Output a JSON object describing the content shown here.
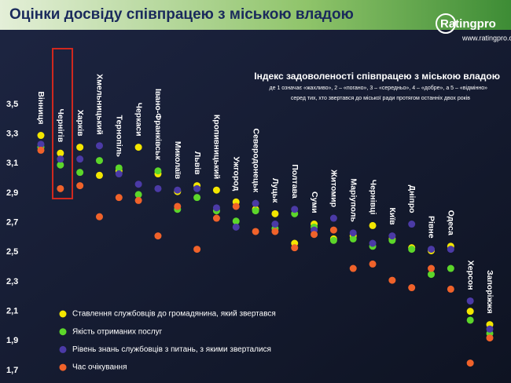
{
  "chart_data": {
    "type": "dotplot",
    "title": "Оцінки досвіду співпрацею з міською владою",
    "logo": "Ratingpro",
    "source": "www.ratingpro.org",
    "note_title": "Індекс задоволеності співпрацею з міською владою",
    "note_lines": [
      "де 1 означає «жахливо», 2 – «погано», 3 – «середньо», 4 – «добре», а 5 – «відмінно»",
      "серед тих, хто звертався до міської ради протягом останніх двох років"
    ],
    "categories": [
      "Вінниця",
      "Чернігів",
      "Харків",
      "Хмельницький",
      "Тернопіль",
      "Черкаси",
      "Івано-Франківськ",
      "Миколаїв",
      "Львів",
      "Кропивницький",
      "Ужгород",
      "Северодонецьк",
      "Луцьк",
      "Полтава",
      "Суми",
      "Житомир",
      "Маріуполь",
      "Чернівці",
      "Київ",
      "Дніпро",
      "Рівне",
      "Одеса",
      "Херсон",
      "Запоріжжя"
    ],
    "series": [
      {
        "name": "Ставлення службовців до громадянина, який звертався",
        "color": "#f3e600",
        "values": [
          3.29,
          3.17,
          3.21,
          3.02,
          3.05,
          3.21,
          3.03,
          2.91,
          2.95,
          2.92,
          2.84,
          2.79,
          2.76,
          2.56,
          2.69,
          2.59,
          2.61,
          2.68,
          2.59,
          2.53,
          2.51,
          2.54,
          2.1,
          2.01
        ]
      },
      {
        "name": "Якість отриманих послуг",
        "color": "#5cd62a",
        "values": [
          3.21,
          3.09,
          3.04,
          3.12,
          3.07,
          2.89,
          3.05,
          2.79,
          2.87,
          2.78,
          2.71,
          2.78,
          2.66,
          2.76,
          2.67,
          2.58,
          2.59,
          2.54,
          2.58,
          2.52,
          2.35,
          2.39,
          2.04,
          1.95
        ]
      },
      {
        "name": "Рівень знань службовців з питань, з якими зверталися",
        "color": "#4b3aa6",
        "values": [
          3.23,
          3.13,
          3.13,
          3.22,
          3.03,
          2.96,
          2.93,
          2.92,
          2.93,
          2.8,
          2.67,
          2.83,
          2.69,
          2.79,
          2.65,
          2.73,
          2.63,
          2.56,
          2.61,
          2.69,
          2.52,
          2.52,
          2.17,
          1.98
        ]
      },
      {
        "name": "Час очікування",
        "color": "#f0622a",
        "values": [
          3.19,
          2.93,
          2.95,
          2.74,
          2.87,
          2.85,
          2.61,
          2.81,
          2.52,
          2.73,
          2.81,
          2.64,
          2.64,
          2.53,
          2.62,
          2.65,
          2.39,
          2.42,
          2.31,
          2.26,
          2.39,
          2.25,
          1.75,
          1.92
        ]
      }
    ],
    "ylim": [
      1.7,
      3.5
    ],
    "yticks": [
      {
        "value": 1.7,
        "label": "1,7"
      },
      {
        "value": 1.9,
        "label": "1,9"
      },
      {
        "value": 2.1,
        "label": "2,1"
      },
      {
        "value": 2.3,
        "label": "2,3"
      },
      {
        "value": 2.5,
        "label": "2,5"
      },
      {
        "value": 2.7,
        "label": "2,7"
      },
      {
        "value": 2.9,
        "label": "2,9"
      },
      {
        "value": 3.1,
        "label": "3,1"
      },
      {
        "value": 3.3,
        "label": "3,3"
      },
      {
        "value": 3.5,
        "label": "3,5"
      }
    ],
    "grid": false,
    "legend": "lower left"
  }
}
